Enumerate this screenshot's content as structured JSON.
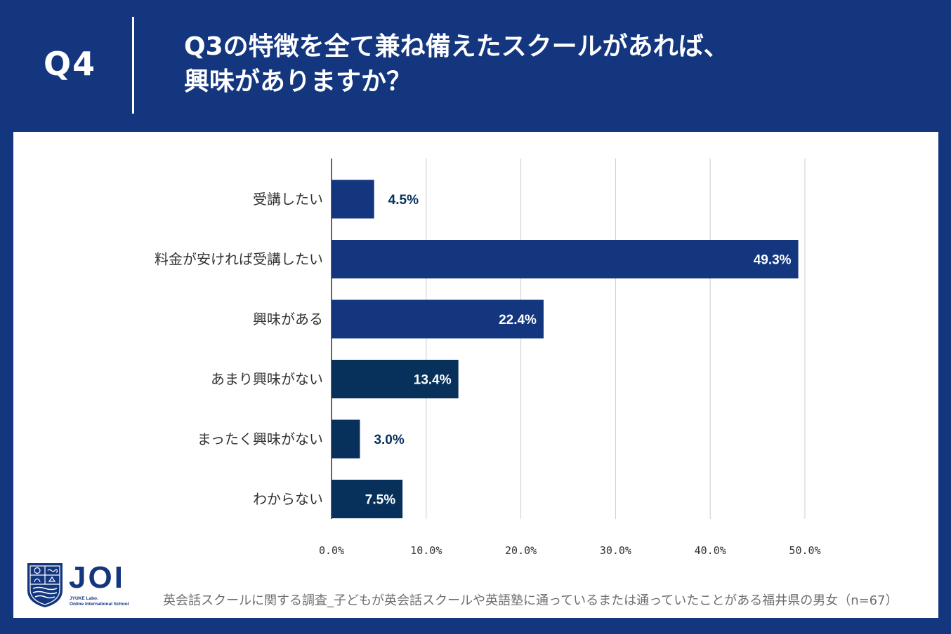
{
  "header": {
    "question_number": "Q4",
    "question_line1": "Q3の特徴を全て兼ね備えたスクールがあれば、",
    "question_line2": "興味がありますか？"
  },
  "chart_data": {
    "type": "bar",
    "orientation": "horizontal",
    "categories": [
      "受講したい",
      "料金が安ければ受講したい",
      "興味がある",
      "あまり興味がない",
      "まったく興味がない",
      "わからない"
    ],
    "values": [
      4.5,
      49.3,
      22.4,
      13.4,
      3.0,
      7.5
    ],
    "value_labels": [
      "4.5%",
      "49.3%",
      "22.4%",
      "13.4%",
      "3.0%",
      "7.5%"
    ],
    "xlim": [
      0,
      50
    ],
    "xticks": [
      0,
      10,
      20,
      30,
      40,
      50
    ],
    "xtick_labels": [
      "0.0%",
      "10.0%",
      "20.0%",
      "30.0%",
      "40.0%",
      "50.0%"
    ],
    "grid": true,
    "bar_colors": [
      "#13367f",
      "#13367f",
      "#13367f",
      "#07305a",
      "#07305a",
      "#07305a"
    ],
    "label_inside_color": "#ffffff",
    "label_outside_color": "#07305a",
    "gridline_color": "#cccccc"
  },
  "footer": {
    "source": "英会話スクールに関する調査_子どもが英会話スクールや英語塾に通っているまたは通っていたことがある福井県の男女（n=67）"
  },
  "logo": {
    "wordmark": "JOI",
    "sub_line1": "JYUKE Labo.",
    "sub_line2": "Online International School"
  },
  "colors": {
    "background": "#13367f",
    "panel": "#ffffff",
    "axis_text": "#333333"
  }
}
